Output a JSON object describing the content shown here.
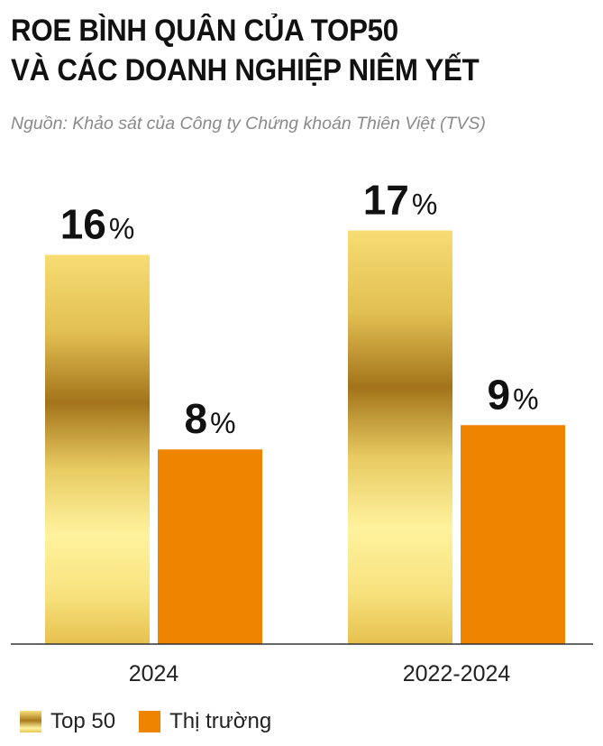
{
  "title_lines": [
    "ROE BÌNH QUÂN CỦA TOP50",
    "VÀ CÁC DOANH NGHIỆP NIÊM YẾT"
  ],
  "source": "Nguồn: Khảo sát của Công ty Chứng khoán Thiên Việt (TVS)",
  "colors": {
    "top50_gradient": [
      "#f6dd73",
      "#a3741a",
      "#fff39e",
      "#e6c04e"
    ],
    "market": "#ee8400"
  },
  "chart_data": {
    "type": "bar",
    "categories": [
      "2024",
      "2022-2024"
    ],
    "unit": "%",
    "series": [
      {
        "name": "Top 50",
        "values": [
          16,
          17
        ]
      },
      {
        "name": "Thị trường",
        "values": [
          8,
          9
        ]
      }
    ],
    "ylim": [
      0,
      19.8
    ],
    "grid": false,
    "legend": "bottom-left"
  }
}
